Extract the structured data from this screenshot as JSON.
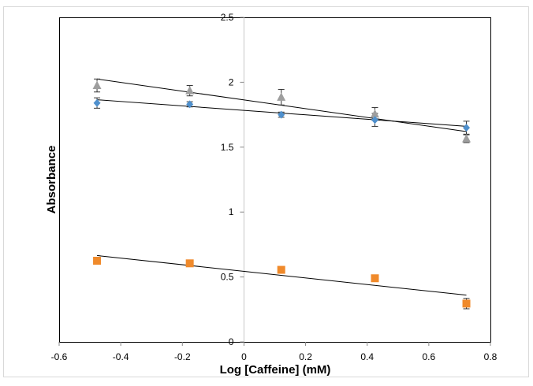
{
  "chart_data": {
    "type": "scatter",
    "title": "",
    "xlabel": "Log [Caffeine] (mM)",
    "ylabel": "Absorbance",
    "xlim": [
      -0.6,
      0.8
    ],
    "ylim": [
      0,
      2.5
    ],
    "x_ticks": [
      "-0.6",
      "-0.4",
      "-0.2",
      "0",
      "0.2",
      "0.4",
      "0.6",
      "0.8"
    ],
    "y_ticks": [
      "0",
      "0.5",
      "1",
      "1.5",
      "2",
      "2.5"
    ],
    "grid": false,
    "legend": "none",
    "series": [
      {
        "marker": "triangle",
        "color": "#9e9e9e",
        "x": [
          -0.477,
          -0.176,
          0.121,
          0.425,
          0.722
        ],
        "y": [
          1.975,
          1.935,
          1.885,
          1.755,
          1.565
        ],
        "err": [
          0.05,
          0.04,
          0.06,
          0.05,
          0.03
        ],
        "trendline": {
          "x": [
            -0.477,
            0.722
          ],
          "y": [
            2.025,
            1.62
          ]
        }
      },
      {
        "marker": "diamond",
        "color": "#4f90cd",
        "x": [
          -0.477,
          -0.176,
          0.121,
          0.425,
          0.722
        ],
        "y": [
          1.84,
          1.83,
          1.75,
          1.71,
          1.65
        ],
        "err": [
          0.04,
          0.02,
          0.02,
          0.05,
          0.05
        ],
        "trendline": {
          "x": [
            -0.477,
            0.722
          ],
          "y": [
            1.865,
            1.66
          ]
        }
      },
      {
        "marker": "square",
        "color": "#f08a2b",
        "x": [
          -0.477,
          -0.176,
          0.121,
          0.425,
          0.722
        ],
        "y": [
          0.625,
          0.605,
          0.555,
          0.49,
          0.295
        ],
        "err": [
          0.01,
          0.01,
          0.01,
          0.01,
          0.04
        ],
        "trendline": {
          "x": [
            -0.477,
            0.722
          ],
          "y": [
            0.665,
            0.36
          ]
        }
      }
    ]
  }
}
